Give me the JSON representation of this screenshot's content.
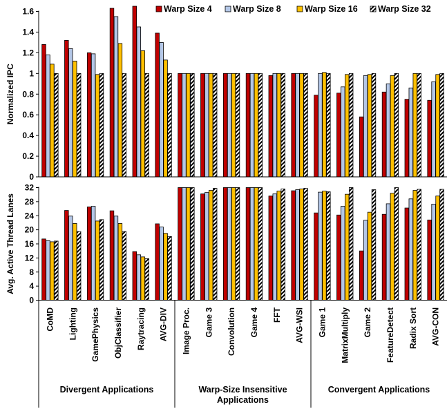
{
  "chart_data": {
    "type": "bar",
    "legend": {
      "placement": "top",
      "items": [
        "Warp Size 4",
        "Warp Size 8",
        "Warp Size 16",
        "Warp Size 32"
      ]
    },
    "series_styles": [
      {
        "fill": "#c00000",
        "pattern": "solid"
      },
      {
        "fill": "#b4c7e7",
        "pattern": "solid"
      },
      {
        "fill": "#ffc000",
        "pattern": "solid"
      },
      {
        "fill": "#ffffff",
        "pattern": "diagonal-hatch"
      }
    ],
    "categories": [
      "CoMD",
      "Lighting",
      "GamePhysics",
      "ObjClassifier",
      "Raytracing",
      "AVG-DIV",
      "Image Proc.",
      "Game 3",
      "Convolution",
      "Game 4",
      "FFT",
      "AVG-WSI",
      "Game 1",
      "MatrixMultiply",
      "Game 2",
      "FeatureDetect",
      "Radix Sort",
      "AVG-CON"
    ],
    "groups": [
      {
        "label": "Divergent Applications",
        "count": 6
      },
      {
        "label": "Warp-Size Insensitive Applications",
        "count": 6
      },
      {
        "label": "Convergent Applications",
        "count": 6
      }
    ],
    "panels": [
      {
        "ylabel": "Normalized IPC",
        "ylim": [
          0,
          1.6
        ],
        "yticks": [
          "0",
          "0.2",
          "0.4",
          "0.6",
          "0.8",
          "1",
          "1.2",
          "1.4",
          "1.6"
        ],
        "tick_values": [
          0,
          0.2,
          0.4,
          0.6,
          0.8,
          1.0,
          1.2,
          1.4,
          1.6
        ],
        "series": [
          {
            "name": "Warp Size 4",
            "values": [
              1.28,
              1.32,
              1.2,
              1.63,
              1.65,
              1.39,
              1.0,
              1.0,
              1.0,
              1.0,
              0.98,
              1.0,
              0.79,
              0.81,
              0.58,
              0.82,
              0.75,
              0.74
            ]
          },
          {
            "name": "Warp Size 8",
            "values": [
              1.18,
              1.24,
              1.19,
              1.55,
              1.45,
              1.3,
              1.0,
              1.0,
              1.0,
              1.0,
              1.0,
              1.0,
              1.0,
              0.87,
              0.98,
              0.9,
              0.86,
              0.92
            ]
          },
          {
            "name": "Warp Size 16",
            "values": [
              1.09,
              1.12,
              0.99,
              1.29,
              1.22,
              1.13,
              1.0,
              1.0,
              1.0,
              1.0,
              1.0,
              1.0,
              1.01,
              0.99,
              0.99,
              0.98,
              1.0,
              0.99
            ]
          },
          {
            "name": "Warp Size 32",
            "values": [
              1.0,
              1.0,
              1.0,
              1.0,
              1.0,
              1.0,
              1.0,
              1.0,
              1.0,
              1.0,
              1.0,
              1.0,
              1.0,
              1.0,
              1.0,
              1.0,
              1.0,
              1.0
            ]
          }
        ]
      },
      {
        "ylabel": "Avg. Active Thread Lanes",
        "ylim": [
          0,
          32
        ],
        "yticks": [
          "0",
          "4",
          "8",
          "12",
          "16",
          "20",
          "24",
          "28",
          "32"
        ],
        "tick_values": [
          0,
          4,
          8,
          12,
          16,
          20,
          24,
          28,
          32
        ],
        "series": [
          {
            "name": "Warp Size 4",
            "values": [
              17.4,
              25.5,
              26.5,
              25.4,
              13.8,
              21.7,
              32.0,
              30.2,
              32.0,
              32.0,
              29.6,
              31.1,
              24.8,
              24.2,
              14.0,
              24.4,
              26.2,
              22.8
            ]
          },
          {
            "name": "Warp Size 8",
            "values": [
              16.9,
              23.9,
              26.7,
              23.9,
              12.9,
              20.8,
              32.0,
              30.6,
              32.0,
              32.0,
              30.2,
              31.4,
              30.7,
              26.7,
              22.7,
              27.4,
              28.8,
              27.3
            ]
          },
          {
            "name": "Warp Size 16",
            "values": [
              16.6,
              21.8,
              22.5,
              21.8,
              12.3,
              19.0,
              32.0,
              31.2,
              32.0,
              32.0,
              31.0,
              31.6,
              31.0,
              30.1,
              25.0,
              30.4,
              31.2,
              29.6
            ]
          },
          {
            "name": "Warp Size 32",
            "values": [
              16.8,
              19.5,
              22.9,
              19.5,
              11.8,
              18.1,
              32.0,
              31.8,
              32.0,
              32.0,
              31.6,
              31.8,
              30.8,
              32.0,
              31.4,
              32.0,
              31.5,
              31.5
            ]
          }
        ]
      }
    ]
  }
}
